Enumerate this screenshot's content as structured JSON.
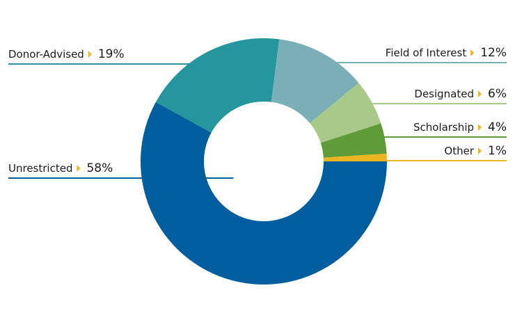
{
  "chart_data": {
    "type": "pie",
    "subtype": "donut",
    "title": "",
    "start_angle_deg": 90,
    "direction": "clockwise",
    "arrow_color": "#F2B21B",
    "slices": [
      {
        "label": "Unrestricted",
        "value": 58,
        "display": "58%",
        "color": "#005E9E",
        "side": "left"
      },
      {
        "label": "Donor-Advised",
        "value": 19,
        "display": "19%",
        "color": "#25959E",
        "side": "left"
      },
      {
        "label": "Field of Interest",
        "value": 12,
        "display": "12%",
        "color": "#7AAFB8",
        "side": "right"
      },
      {
        "label": "Designated",
        "value": 6,
        "display": "6%",
        "color": "#A8C987",
        "side": "right"
      },
      {
        "label": "Scholarship",
        "value": 4,
        "display": "4%",
        "color": "#5F9B38",
        "side": "right"
      },
      {
        "label": "Other",
        "value": 1,
        "display": "1%",
        "color": "#EDB520",
        "side": "right"
      }
    ]
  }
}
